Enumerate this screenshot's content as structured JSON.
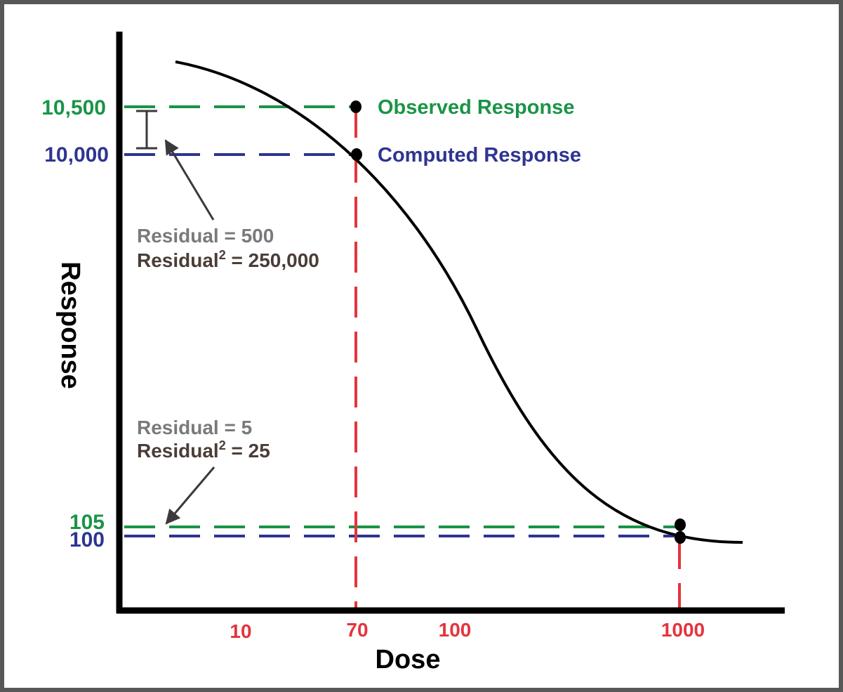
{
  "axes": {
    "x_label": "Dose",
    "y_label": "Response",
    "x_ticks": [
      "10",
      "70",
      "100",
      "1000"
    ],
    "y_ticks": [
      "10,500",
      "10,000",
      "105",
      "100"
    ]
  },
  "legend": {
    "observed": "Observed Response",
    "computed": "Computed Response"
  },
  "annotations": {
    "top": {
      "residual": "Residual = 500",
      "residual_sq_prefix": "Residual",
      "residual_sq_sup": "2",
      "residual_sq_value": " = 250,000"
    },
    "bottom": {
      "residual": "Residual = 5",
      "residual_sq_prefix": "Residual",
      "residual_sq_sup": "2",
      "residual_sq_value": " = 25"
    }
  },
  "points": [
    {
      "dose": "70",
      "observed": "10,500",
      "computed": "10,000"
    },
    {
      "dose": "1000",
      "observed": "105",
      "computed": "100"
    }
  ],
  "colors": {
    "observed": "#1a9447",
    "computed": "#2e3590",
    "dose_lines": "#e5333d",
    "residual_value": "#7a7a7a",
    "residual_squared": "#4a3d37",
    "frame": "#585858"
  }
}
